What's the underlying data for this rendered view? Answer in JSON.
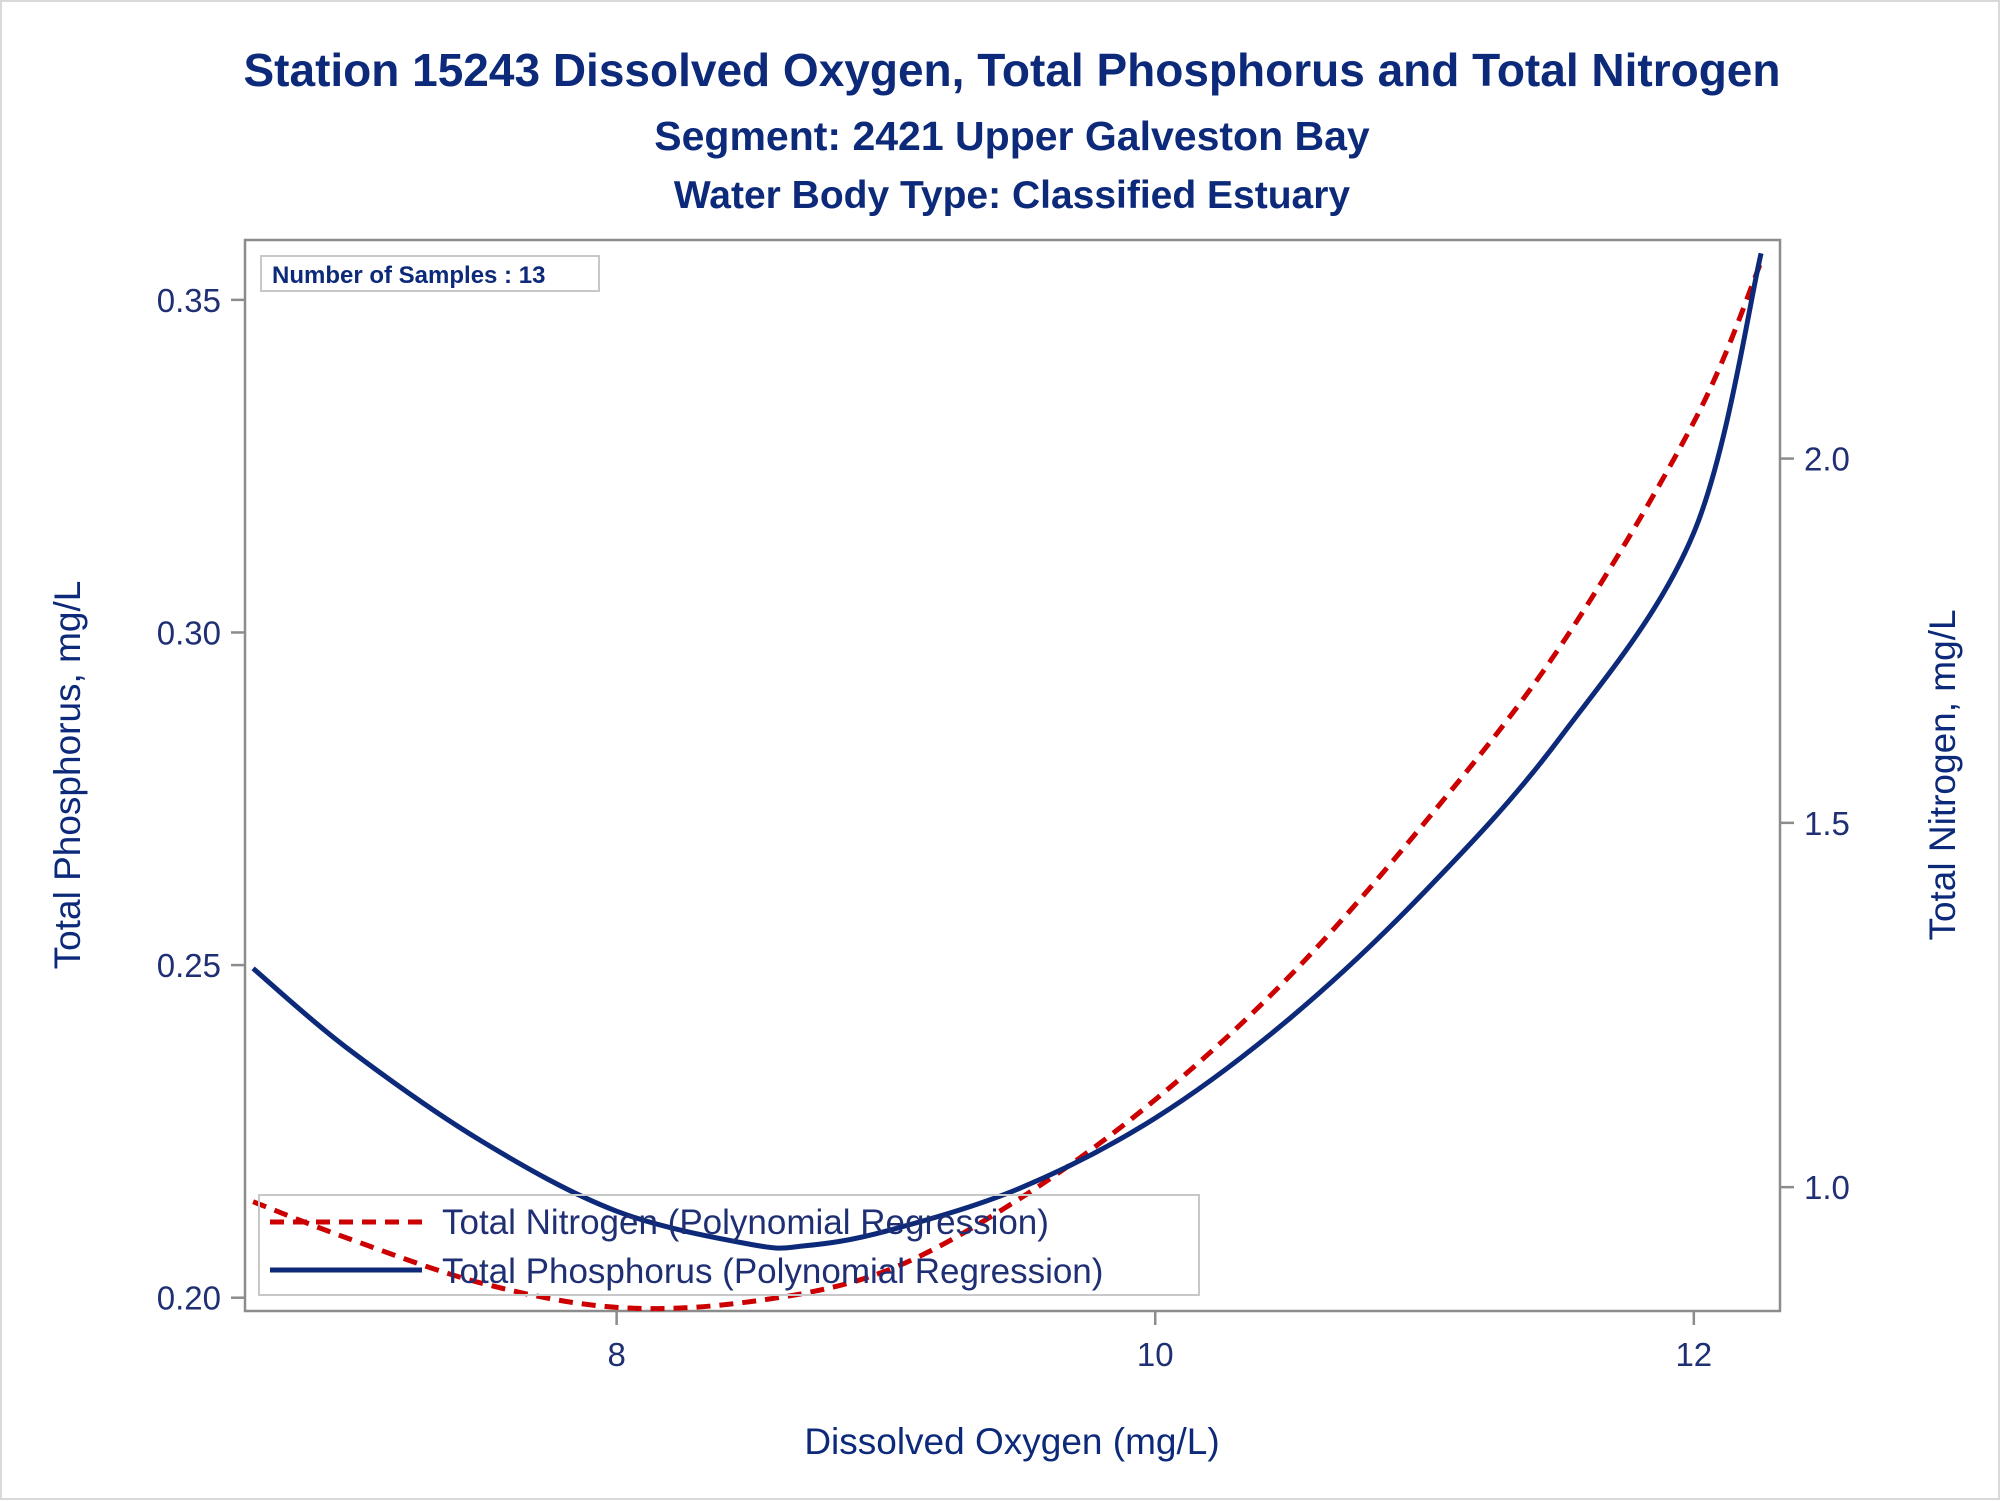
{
  "titles": {
    "line1": "Station 15243  Dissolved Oxygen, Total Phosphorus and Total Nitrogen",
    "line2": "Segment: 2421  Upper Galveston Bay",
    "line3": "Water Body Type: Classified Estuary"
  },
  "inset": {
    "label": "Number of Samples : 13"
  },
  "legend": {
    "nitrogen_label": "Total Nitrogen (Polynomial Regression)",
    "phosphorus_label": "Total Phosphorus (Polynomial Regression)"
  },
  "colors": {
    "phosphorus": "#0d2a7a",
    "nitrogen": "#cc0000",
    "axis": "#8c8c8c",
    "text": "#0d2a7a"
  },
  "chart_data": {
    "type": "line",
    "xlabel": "Dissolved Oxygen (mg/L)",
    "ylabel": "Total Phosphorus, mg/L",
    "y2label": "Total Nitrogen, mg/L",
    "xlim": [
      6.62,
      12.32
    ],
    "ylim": [
      0.198,
      0.359
    ],
    "y2lim": [
      0.83,
      2.3
    ],
    "x_ticks": [
      "8",
      "10",
      "12"
    ],
    "y_ticks": [
      "0.20",
      "0.25",
      "0.30",
      "0.35"
    ],
    "y2_ticks": [
      "1.0",
      "1.5",
      "2.0"
    ],
    "grid": false,
    "legend_position": "bottom-left",
    "series": [
      {
        "name": "Total Phosphorus (Polynomial Regression)",
        "axis": "left",
        "style": "solid",
        "x": [
          6.65,
          7.0,
          7.5,
          8.0,
          8.5,
          8.7,
          9.0,
          9.5,
          10.0,
          10.5,
          11.0,
          11.5,
          12.0,
          12.25
        ],
        "y": [
          0.2495,
          0.2375,
          0.2235,
          0.213,
          0.208,
          0.2078,
          0.21,
          0.2165,
          0.227,
          0.242,
          0.261,
          0.284,
          0.315,
          0.357
        ]
      },
      {
        "name": "Total Nitrogen (Polynomial Regression)",
        "axis": "right",
        "style": "dashed",
        "x": [
          6.65,
          7.0,
          7.5,
          8.0,
          8.5,
          9.0,
          9.5,
          10.0,
          10.5,
          11.0,
          11.5,
          12.0,
          12.25
        ],
        "y": [
          0.98,
          0.93,
          0.868,
          0.835,
          0.843,
          0.885,
          0.985,
          1.12,
          1.29,
          1.5,
          1.74,
          2.05,
          2.27
        ]
      }
    ]
  }
}
